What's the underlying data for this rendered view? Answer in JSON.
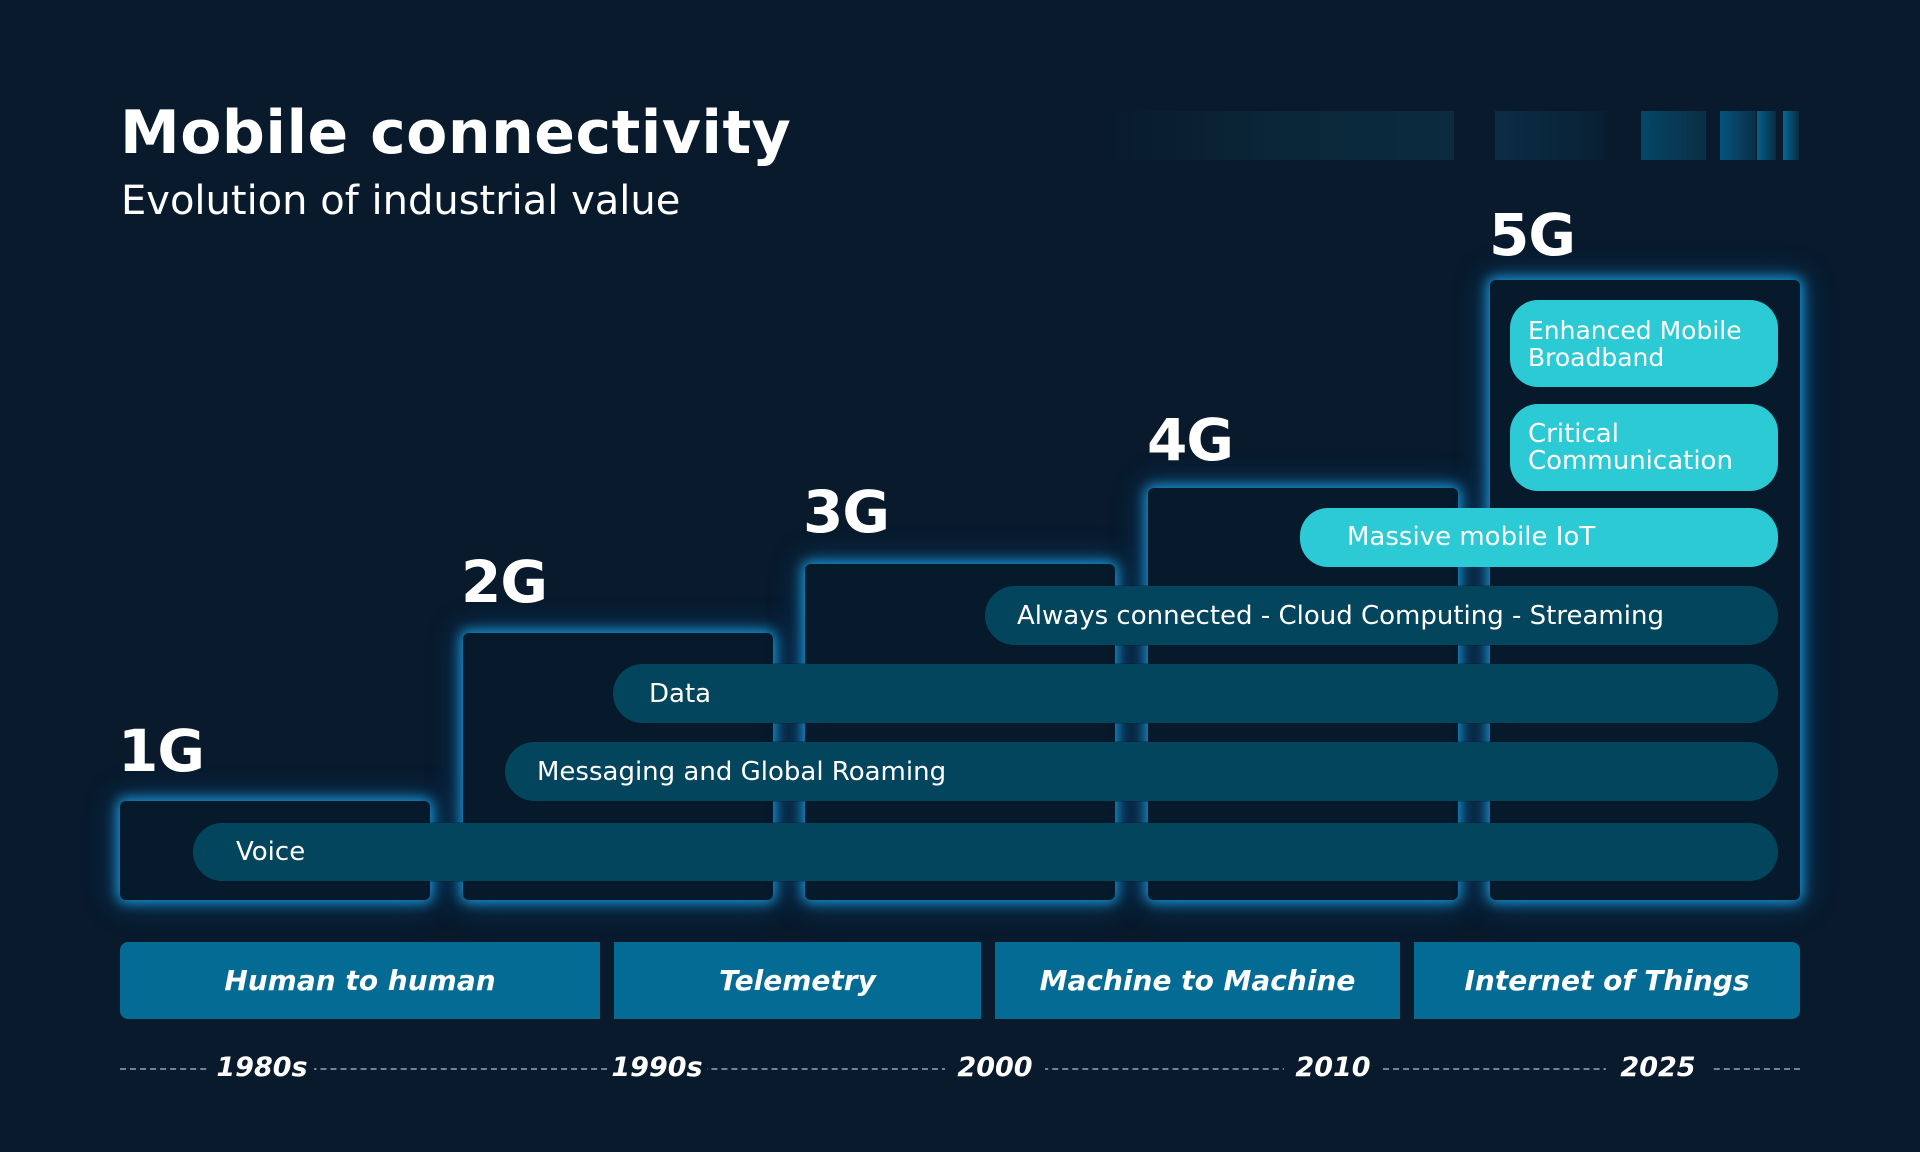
{
  "title": "Mobile connectivity",
  "subtitle": "Evolution of industrial value",
  "generations": [
    {
      "label": "1G"
    },
    {
      "label": "2G"
    },
    {
      "label": "3G"
    },
    {
      "label": "4G"
    },
    {
      "label": "5G"
    }
  ],
  "bars": {
    "voice": "Voice",
    "messaging": "Messaging and Global Roaming",
    "data": "Data",
    "always_connected": "Always connected - Cloud Computing - Streaming",
    "massive_iot": "Massive mobile IoT",
    "critical": "Critical Communication",
    "embb": "Enhanced Mobile Broadband"
  },
  "categories": [
    {
      "label": "Human to human"
    },
    {
      "label": "Telemetry"
    },
    {
      "label": "Machine to Machine"
    },
    {
      "label": "Internet of Things"
    }
  ],
  "timeline": [
    "1980s",
    "1990s",
    "2000",
    "2010",
    "2025"
  ],
  "colors": {
    "background": "#081a2c",
    "glow": "#1ba5e6",
    "bar": "#04455e",
    "highlight": "#2ccad4",
    "category": "#046b94"
  }
}
